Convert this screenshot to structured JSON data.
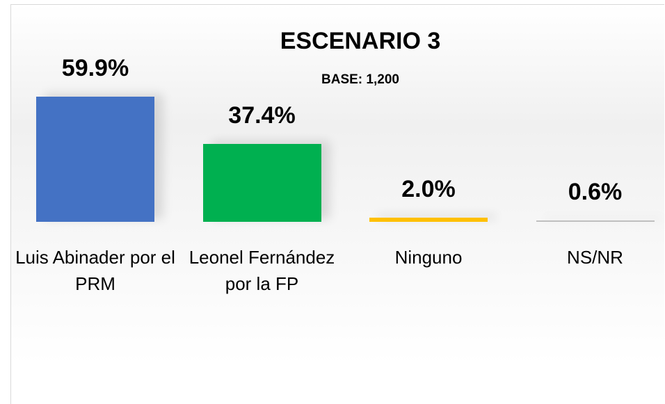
{
  "chart_data": {
    "type": "bar",
    "title": "ESCENARIO 3",
    "subtitle": "BASE: 1,200",
    "categories": [
      "Luis Abinader por el PRM",
      "Leonel Fernández por la FP",
      "Ninguno",
      "NS/NR"
    ],
    "values": [
      59.9,
      37.4,
      2.0,
      0.6
    ],
    "value_labels": [
      "59.9%",
      "37.4%",
      "2.0%",
      "0.6%"
    ],
    "colors": [
      "#4472c4",
      "#00b050",
      "#ffc000",
      "#bfbfbf"
    ]
  }
}
